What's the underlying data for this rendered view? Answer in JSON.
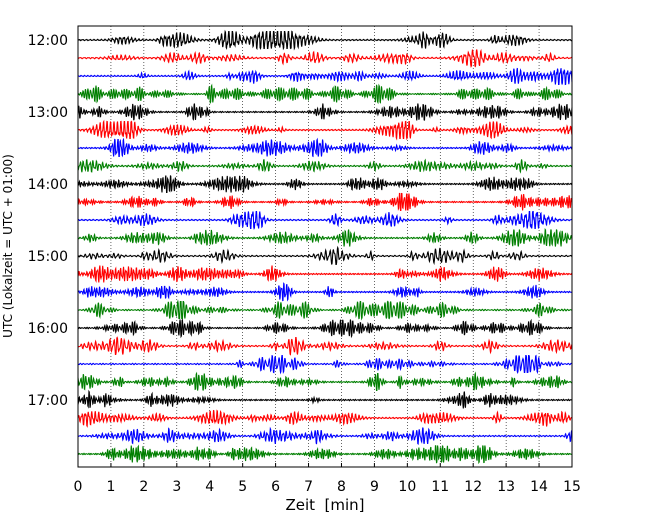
{
  "chart_data": {
    "type": "line",
    "title": "",
    "xlabel": "Zeit  [min]",
    "ylabel": "UTC (Lokalzeit = UTC + 01:00)",
    "xlim": [
      0,
      15
    ],
    "x_ticks": [
      0,
      1,
      2,
      3,
      4,
      5,
      6,
      7,
      8,
      9,
      10,
      11,
      12,
      13,
      14,
      15
    ],
    "x_tick_labels": [
      "0",
      "1",
      "2",
      "3",
      "4",
      "5",
      "6",
      "7",
      "8",
      "9",
      "10",
      "11",
      "12",
      "13",
      "14",
      "15"
    ],
    "y_tick_labels": [
      {
        "label": "12:00",
        "trace": 0
      },
      {
        "label": "13:00",
        "trace": 4
      },
      {
        "label": "14:00",
        "trace": 8
      },
      {
        "label": "15:00",
        "trace": 12
      },
      {
        "label": "16:00",
        "trace": 16
      },
      {
        "label": "17:00",
        "trace": 20
      }
    ],
    "trace_interval_minutes": 15,
    "trace_colors": [
      "#000000",
      "#ff0000",
      "#0000ff",
      "#007f00"
    ],
    "traces": [
      {
        "start": "12:00"
      },
      {
        "start": "12:15"
      },
      {
        "start": "12:30"
      },
      {
        "start": "12:45"
      },
      {
        "start": "13:00"
      },
      {
        "start": "13:15"
      },
      {
        "start": "13:30"
      },
      {
        "start": "13:45"
      },
      {
        "start": "14:00"
      },
      {
        "start": "14:15"
      },
      {
        "start": "14:30"
      },
      {
        "start": "14:45"
      },
      {
        "start": "15:00"
      },
      {
        "start": "15:15"
      },
      {
        "start": "15:30"
      },
      {
        "start": "15:45"
      },
      {
        "start": "16:00"
      },
      {
        "start": "16:15"
      },
      {
        "start": "16:30"
      },
      {
        "start": "16:45"
      },
      {
        "start": "17:00"
      },
      {
        "start": "17:15"
      },
      {
        "start": "17:30"
      },
      {
        "start": "17:45"
      }
    ],
    "grid": "vertical dotted lines at x ticks",
    "legend": "none"
  }
}
